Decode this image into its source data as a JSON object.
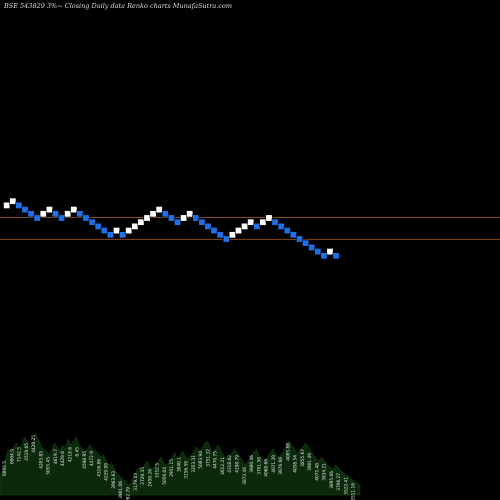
{
  "title": "BSE 543829 3%~  Closing Daily data  Renko  charts MunafaSutra.com",
  "colors": {
    "up": "#ffffff",
    "down": "#1f6fe8",
    "line": "#8a4a1e",
    "volume": "#0b2a0b",
    "background": "#000000"
  },
  "chart_data": {
    "type": "renko",
    "bricks": [
      {
        "dir": "up",
        "level": 29
      },
      {
        "dir": "up",
        "level": 30
      },
      {
        "dir": "down",
        "level": 29
      },
      {
        "dir": "down",
        "level": 28
      },
      {
        "dir": "down",
        "level": 27
      },
      {
        "dir": "down",
        "level": 26
      },
      {
        "dir": "up",
        "level": 27
      },
      {
        "dir": "up",
        "level": 28
      },
      {
        "dir": "down",
        "level": 27
      },
      {
        "dir": "down",
        "level": 26
      },
      {
        "dir": "up",
        "level": 27
      },
      {
        "dir": "up",
        "level": 28
      },
      {
        "dir": "down",
        "level": 27
      },
      {
        "dir": "down",
        "level": 26
      },
      {
        "dir": "down",
        "level": 25
      },
      {
        "dir": "down",
        "level": 24
      },
      {
        "dir": "down",
        "level": 23
      },
      {
        "dir": "down",
        "level": 22
      },
      {
        "dir": "up",
        "level": 23
      },
      {
        "dir": "down",
        "level": 22
      },
      {
        "dir": "up",
        "level": 23
      },
      {
        "dir": "up",
        "level": 24
      },
      {
        "dir": "up",
        "level": 25
      },
      {
        "dir": "up",
        "level": 26
      },
      {
        "dir": "up",
        "level": 27
      },
      {
        "dir": "up",
        "level": 28
      },
      {
        "dir": "down",
        "level": 27
      },
      {
        "dir": "down",
        "level": 26
      },
      {
        "dir": "down",
        "level": 25
      },
      {
        "dir": "up",
        "level": 26
      },
      {
        "dir": "up",
        "level": 27
      },
      {
        "dir": "down",
        "level": 26
      },
      {
        "dir": "down",
        "level": 25
      },
      {
        "dir": "down",
        "level": 24
      },
      {
        "dir": "down",
        "level": 23
      },
      {
        "dir": "down",
        "level": 22
      },
      {
        "dir": "down",
        "level": 21
      },
      {
        "dir": "up",
        "level": 22
      },
      {
        "dir": "up",
        "level": 23
      },
      {
        "dir": "up",
        "level": 24
      },
      {
        "dir": "up",
        "level": 25
      },
      {
        "dir": "down",
        "level": 24
      },
      {
        "dir": "up",
        "level": 25
      },
      {
        "dir": "up",
        "level": 26
      },
      {
        "dir": "down",
        "level": 25
      },
      {
        "dir": "down",
        "level": 24
      },
      {
        "dir": "down",
        "level": 23
      },
      {
        "dir": "down",
        "level": 22
      },
      {
        "dir": "down",
        "level": 21
      },
      {
        "dir": "down",
        "level": 20
      },
      {
        "dir": "down",
        "level": 19
      },
      {
        "dir": "down",
        "level": 18
      },
      {
        "dir": "down",
        "level": 17
      },
      {
        "dir": "up",
        "level": 18
      },
      {
        "dir": "down",
        "level": 17
      }
    ],
    "reference_levels": [
      25.6,
      20.4
    ],
    "volume": [
      0.18,
      0.26,
      0.36,
      0.46,
      0.4,
      0.48,
      0.52,
      0.44,
      0.5,
      0.58,
      0.54,
      0.47,
      0.52,
      0.62,
      0.56,
      0.5,
      0.46,
      0.44,
      0.4,
      0.46,
      0.52,
      0.48,
      0.44,
      0.5,
      0.46,
      0.56,
      0.5,
      0.54,
      0.58,
      0.5,
      0.46,
      0.42,
      0.46,
      0.5,
      0.46,
      0.44,
      0.42,
      0.38,
      0.4,
      0.34,
      0.3,
      0.32,
      0.26,
      0.22,
      0.18,
      0.16,
      0.14,
      0.1,
      0.12,
      0.18,
      0.24,
      0.28,
      0.24,
      0.3,
      0.34,
      0.28,
      0.26,
      0.3,
      0.34,
      0.38,
      0.32,
      0.3,
      0.34,
      0.38,
      0.42,
      0.36,
      0.4,
      0.44,
      0.38,
      0.36,
      0.4,
      0.42,
      0.48,
      0.44,
      0.46,
      0.52,
      0.54,
      0.48,
      0.42,
      0.46,
      0.5,
      0.44,
      0.4,
      0.36,
      0.38,
      0.42,
      0.46,
      0.42,
      0.38,
      0.34,
      0.3,
      0.34,
      0.38,
      0.42,
      0.46,
      0.4,
      0.36,
      0.34,
      0.38,
      0.42,
      0.46,
      0.42,
      0.38,
      0.4,
      0.44,
      0.5,
      0.54,
      0.5,
      0.46,
      0.42,
      0.44,
      0.48,
      0.52,
      0.48,
      0.44,
      0.4,
      0.36,
      0.34,
      0.38,
      0.34,
      0.3,
      0.28,
      0.26,
      0.3,
      0.28,
      0.24,
      0.22,
      0.2,
      0.18,
      0.16,
      0.14,
      0.12,
      0.1
    ],
    "volume_labels": [
      "6092.5",
      "6904.9",
      "7142.5",
      "4519.65",
      "4429.25",
      "4203.85",
      "5055.45",
      "4619.7",
      "4429.6",
      "4218.6",
      "6.45",
      "4598.95",
      "4472.9",
      "4316.86",
      "4229.08",
      "3963.63",
      "3901.06",
      "2992.79",
      "3179.43",
      "2729.35",
      "2450.26",
      "3352.5",
      "5056.04",
      "2951.15",
      "3040.1",
      "3156.59",
      "3353.31",
      "5083.94",
      "3751.32",
      "4470.75",
      "4612.21",
      "4318.02",
      "4198.79",
      "3872.46",
      "3980.46",
      "3701.58",
      "4068.66",
      "4071.39",
      "3976.66",
      "4085.88",
      "4058.54",
      "3855.67",
      "3901.49",
      "4075.48",
      "3934.21",
      "3895.06",
      "3706.27",
      "3522.41",
      "3511.16"
    ]
  }
}
